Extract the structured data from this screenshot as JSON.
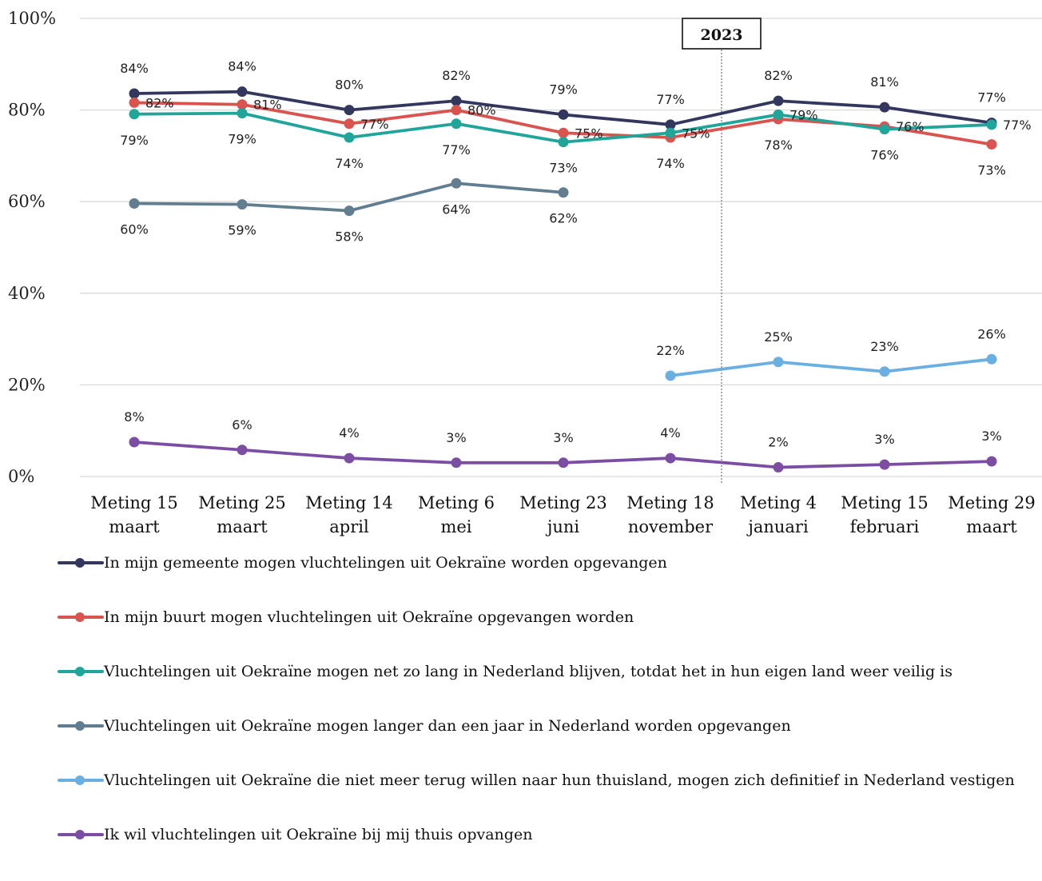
{
  "chart_data": {
    "type": "line",
    "year_marker": "2023",
    "y_ticks": [
      "0%",
      "20%",
      "40%",
      "60%",
      "80%",
      "100%"
    ],
    "ylim": [
      0,
      100
    ],
    "grid": true,
    "legend_position": "bottom",
    "categories": [
      [
        "Meting 15",
        "maart"
      ],
      [
        "Meting 25",
        "maart"
      ],
      [
        "Meting 14",
        "april"
      ],
      [
        "Meting 6",
        "mei"
      ],
      [
        "Meting 23",
        "juni"
      ],
      [
        "Meting 18",
        "november"
      ],
      [
        "Meting 4",
        "januari"
      ],
      [
        "Meting 15",
        "februari"
      ],
      [
        "Meting 29",
        "maart"
      ]
    ],
    "series": [
      {
        "name": "In mijn gemeente mogen vluchtelingen uit Oekraïne worden opgevangen",
        "color": "#33375e",
        "values": [
          83.6,
          84.0,
          80.0,
          82.0,
          79.0,
          76.8,
          82.0,
          80.6,
          77.2
        ],
        "labels": [
          "84%",
          "84%",
          "80%",
          "82%",
          "79%",
          "77%",
          "82%",
          "81%",
          "77%"
        ],
        "label_pos": [
          "above",
          "above",
          "above",
          "above",
          "above",
          "above",
          "above",
          "above",
          "above"
        ]
      },
      {
        "name": "In mijn buurt mogen vluchtelingen uit Oekraïne opgevangen worden",
        "color": "#d9534f",
        "values": [
          81.6,
          81.2,
          77.0,
          80.0,
          75.0,
          74.0,
          78.0,
          76.4,
          72.5
        ],
        "labels": [
          "82%",
          "81%",
          "77%",
          "80%",
          "75%",
          "74%",
          "78%",
          "76%",
          "73%"
        ],
        "label_pos": [
          "right",
          "right",
          "right",
          "right",
          "right",
          "below",
          "below",
          "right",
          "below"
        ]
      },
      {
        "name": "Vluchtelingen uit Oekraïne mogen net zo lang in Nederland blijven, totdat het in hun eigen land weer veilig is",
        "color": "#1fa59a",
        "values": [
          79.1,
          79.3,
          74.0,
          77.0,
          73.0,
          75.0,
          79.0,
          75.8,
          76.8
        ],
        "labels": [
          "79%",
          "79%",
          "74%",
          "77%",
          "73%",
          "75%",
          "79%",
          "76%",
          "77%"
        ],
        "label_pos": [
          "below",
          "below",
          "below",
          "below",
          "below",
          "right",
          "right",
          "below",
          "right"
        ]
      },
      {
        "name": "Vluchtelingen uit Oekraïne mogen langer dan een jaar in Nederland worden opgevangen",
        "color": "#617d90",
        "values": [
          59.6,
          59.4,
          58.0,
          64.0,
          62.0,
          null,
          null,
          null,
          null
        ],
        "labels": [
          "60%",
          "59%",
          "58%",
          "64%",
          "62%",
          "",
          "",
          "",
          ""
        ],
        "label_pos": [
          "below",
          "below",
          "below",
          "below",
          "below",
          "",
          "",
          "",
          ""
        ]
      },
      {
        "name": "Vluchtelingen uit Oekraïne die niet meer terug willen naar hun thuisland, mogen zich definitief in Nederland vestigen",
        "color": "#6aafe1",
        "values": [
          null,
          null,
          null,
          null,
          null,
          22.0,
          25.0,
          22.9,
          25.6
        ],
        "labels": [
          "",
          "",
          "",
          "",
          "",
          "22%",
          "25%",
          "23%",
          "26%"
        ],
        "label_pos": [
          "",
          "",
          "",
          "",
          "",
          "above",
          "above",
          "above",
          "above"
        ]
      },
      {
        "name": "Ik wil vluchtelingen uit Oekraïne bij mij thuis opvangen",
        "color": "#7b4ea3",
        "values": [
          7.5,
          5.8,
          4.0,
          3.0,
          3.0,
          4.0,
          2.0,
          2.6,
          3.3
        ],
        "labels": [
          "8%",
          "6%",
          "4%",
          "3%",
          "3%",
          "4%",
          "2%",
          "3%",
          "3%"
        ],
        "label_pos": [
          "above",
          "above",
          "above",
          "above",
          "above",
          "above",
          "above",
          "above",
          "above"
        ]
      }
    ]
  }
}
